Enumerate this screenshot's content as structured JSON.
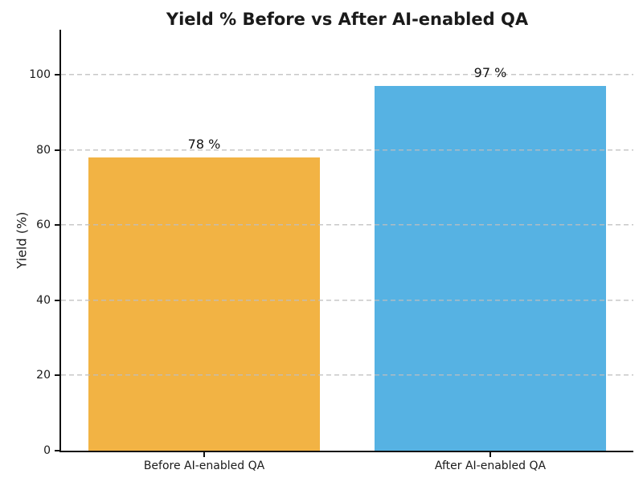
{
  "chart_data": {
    "type": "bar",
    "title": "Yield % Before vs After AI-enabled QA",
    "xlabel": "",
    "ylabel": "Yield (%)",
    "categories": [
      "Before AI-enabled QA",
      "After AI-enabled QA"
    ],
    "values": [
      78,
      97
    ],
    "bar_labels": [
      "78 %",
      "97 %"
    ],
    "bar_colors": [
      "#F2B344",
      "#56B2E3"
    ],
    "yticks": [
      0,
      20,
      40,
      60,
      80,
      100
    ],
    "ylim": [
      0,
      112
    ],
    "grid": "horizontal-dashed-above-bars",
    "gridline_color": "#BEBEBE",
    "legend": "none",
    "spines": "left-bottom-only"
  }
}
